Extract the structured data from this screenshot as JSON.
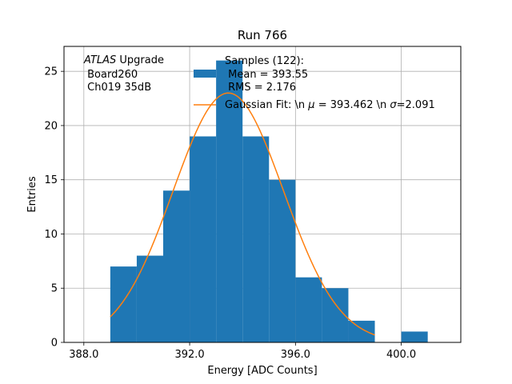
{
  "chart_data": {
    "type": "bar",
    "title": "Run 766",
    "xlabel": "Energy [ADC Counts]",
    "ylabel": "Entries",
    "xlim": [
      387.25,
      402.25
    ],
    "ylim": [
      0,
      27.3
    ],
    "xticks": [
      388,
      392,
      396,
      400
    ],
    "xtick_labels": [
      "388.0",
      "392.0",
      "396.0",
      "400.0"
    ],
    "yticks": [
      0,
      5,
      10,
      15,
      20,
      25
    ],
    "ytick_labels": [
      "0",
      "5",
      "10",
      "15",
      "20",
      "25"
    ],
    "grid": true,
    "bar_color": "#1f77b4",
    "fit_color": "#ff7f0e",
    "histogram": {
      "bin_edges": [
        389,
        390,
        391,
        392,
        393,
        394,
        395,
        396,
        397,
        398,
        399,
        400,
        401
      ],
      "counts": [
        7,
        8,
        14,
        19,
        26,
        19,
        15,
        6,
        5,
        2,
        0,
        1
      ]
    },
    "fit": {
      "mu": 393.462,
      "sigma": 2.091,
      "amplitude": 23.0,
      "x_range": [
        389,
        399
      ]
    },
    "annotation": {
      "line1_italic": "ATLAS",
      "line1_rest": " Upgrade",
      "line2": " Board260",
      "line3": " Ch019 35dB"
    },
    "legend": {
      "location": "top-right",
      "samples_line1": "Samples (122):",
      "samples_line2": " Mean = 393.55",
      "samples_line3": " RMS = 2.176",
      "fit_prefix": "Gaussian Fit: \\n ",
      "fit_mu_symbol": "μ",
      "fit_mid": " = 393.462 \\n ",
      "fit_sigma_symbol": "σ",
      "fit_suffix": "=2.091"
    }
  }
}
